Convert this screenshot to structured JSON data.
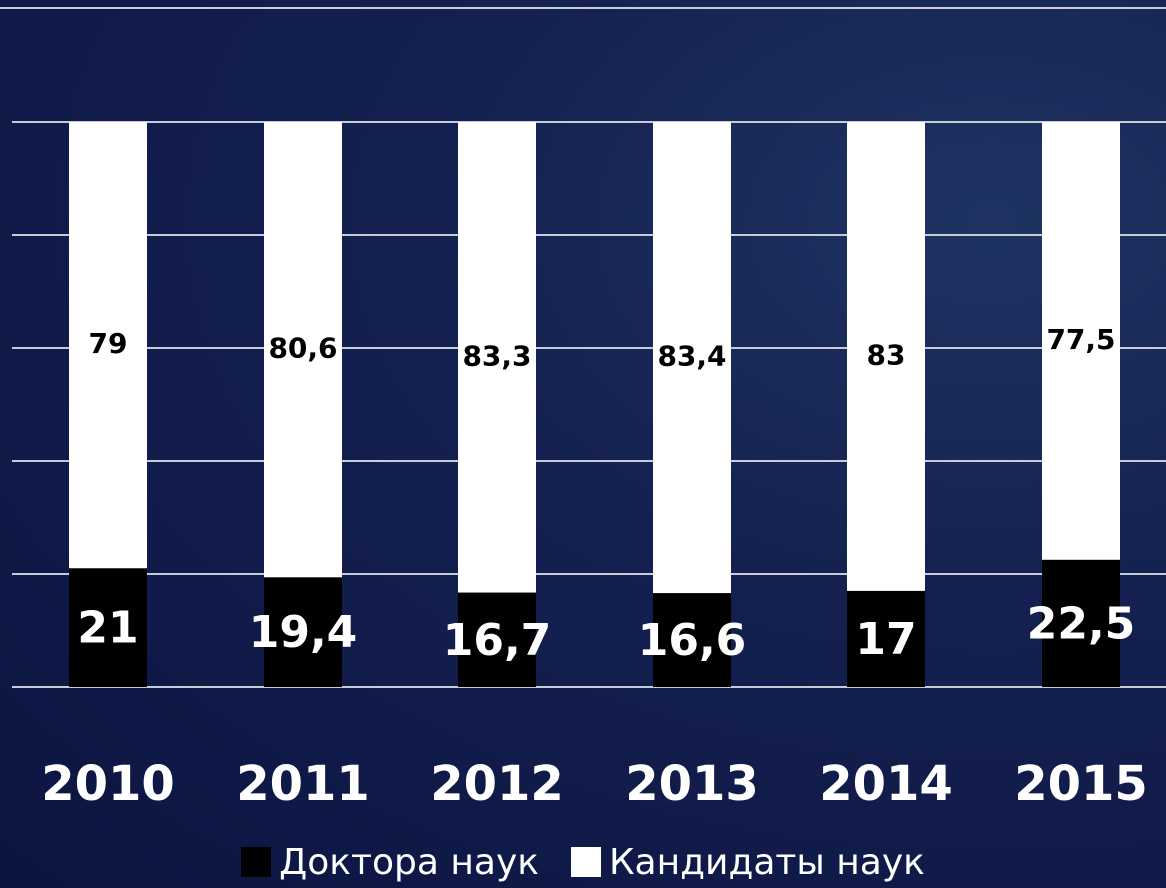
{
  "chart_data": {
    "type": "bar",
    "stacked": true,
    "percent": true,
    "categories": [
      "2010",
      "2011",
      "2012",
      "2013",
      "2014",
      "2015"
    ],
    "series": [
      {
        "name": "Доктора наук",
        "values": [
          21,
          19.4,
          16.7,
          16.6,
          17,
          22.5
        ],
        "labels": [
          "21",
          "19,4",
          "16,7",
          "16,6",
          "17",
          "22,5"
        ],
        "color": "#000000"
      },
      {
        "name": "Кандидаты наук",
        "values": [
          79,
          80.6,
          83.3,
          83.4,
          83,
          77.5
        ],
        "labels": [
          "79",
          "80,6",
          "83,3",
          "83,4",
          "83",
          "77,5"
        ],
        "color": "#ffffff"
      }
    ],
    "ylim": [
      0,
      100
    ],
    "grid": true,
    "legend_position": "bottom",
    "background": "#121d4c",
    "gridline_color": "#c7cbd6"
  }
}
